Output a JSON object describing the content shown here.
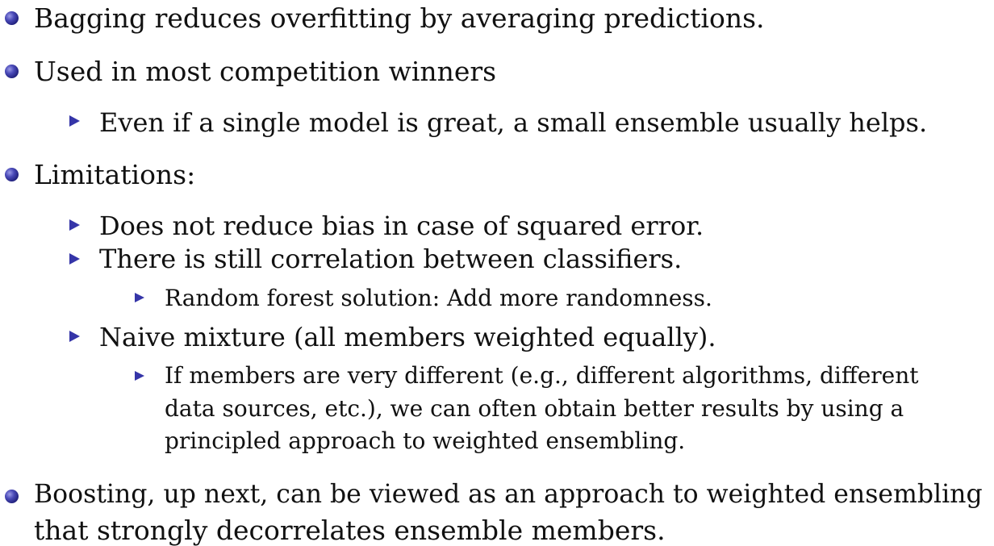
{
  "slide": {
    "items": [
      {
        "text": "Bagging reduces overfitting by averaging predictions."
      },
      {
        "text": "Used in most competition winners",
        "sub": [
          {
            "text": "Even if a single model is great, a small ensemble usually helps."
          }
        ]
      },
      {
        "text": "Limitations:",
        "sub": [
          {
            "text": "Does not reduce bias in case of squared error."
          },
          {
            "text": "There is still correlation between classifiers.",
            "sub": [
              {
                "text": "Random forest solution: Add more randomness."
              }
            ]
          },
          {
            "text": "Naive mixture (all members weighted equally).",
            "sub": [
              {
                "lines": [
                  "If members are very different (e.g., different algorithms, different",
                  "data sources, etc.), we can often obtain better results by using a",
                  "principled approach to weighted ensembling."
                ]
              }
            ]
          }
        ]
      },
      {
        "lines": [
          "Boosting, up next, can be viewed as an approach to weighted ensembling",
          "that strongly decorrelates ensemble members."
        ]
      }
    ]
  },
  "colors": {
    "bullet_ball": "#2a2a8c",
    "bullet_triangle": "#3535a8",
    "text": "#111111"
  },
  "icons": {
    "level1": "sphere-bullet",
    "level2": "triangle-bullet",
    "level3": "triangle-bullet"
  }
}
